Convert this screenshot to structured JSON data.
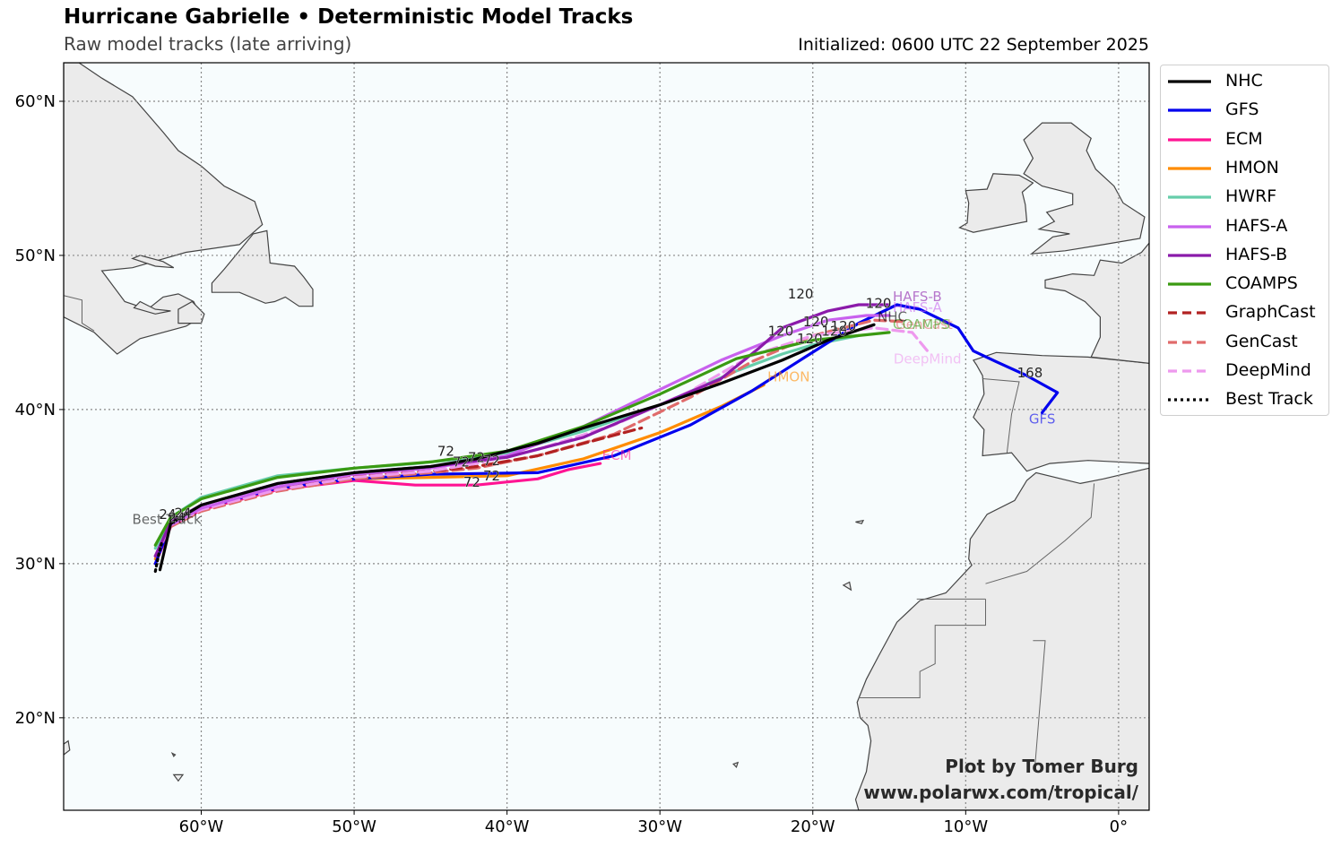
{
  "header": {
    "title": "Hurricane Gabrielle • Deterministic Model Tracks",
    "subtitle": "Raw model tracks (late arriving)",
    "initialized": "Initialized: 0600 UTC 22 September 2025"
  },
  "credits": {
    "line1": "Plot by Tomer Burg",
    "line2": "www.polarwx.com/tropical/"
  },
  "map": {
    "lon_range": [
      -69,
      2
    ],
    "lat_range": [
      14,
      62.5
    ],
    "ocean_color": "#f7fcfd",
    "land_color": "#ebebeb",
    "coast_color": "#444444",
    "lon_ticks": [
      {
        "lon": -60,
        "label": "60°W"
      },
      {
        "lon": -50,
        "label": "50°W"
      },
      {
        "lon": -40,
        "label": "40°W"
      },
      {
        "lon": -30,
        "label": "30°W"
      },
      {
        "lon": -20,
        "label": "20°W"
      },
      {
        "lon": -10,
        "label": "10°W"
      },
      {
        "lon": 0,
        "label": "0°"
      }
    ],
    "lat_ticks": [
      {
        "lat": 60,
        "label": "60°N"
      },
      {
        "lat": 50,
        "label": "50°N"
      },
      {
        "lat": 40,
        "label": "40°N"
      },
      {
        "lat": 30,
        "label": "30°N"
      },
      {
        "lat": 20,
        "label": "20°N"
      }
    ]
  },
  "legend": [
    {
      "name": "NHC",
      "color": "#000000",
      "style": "solid"
    },
    {
      "name": "GFS",
      "color": "#0000ee",
      "style": "solid"
    },
    {
      "name": "ECM",
      "color": "#ff1493",
      "style": "solid"
    },
    {
      "name": "HMON",
      "color": "#ff8c00",
      "style": "solid"
    },
    {
      "name": "HWRF",
      "color": "#66cdaa",
      "style": "solid"
    },
    {
      "name": "HAFS-A",
      "color": "#c861ee",
      "style": "solid"
    },
    {
      "name": "HAFS-B",
      "color": "#8b1aaa",
      "style": "solid"
    },
    {
      "name": "COAMPS",
      "color": "#3a9a12",
      "style": "solid"
    },
    {
      "name": "GraphCast",
      "color": "#b22222",
      "style": "dashed"
    },
    {
      "name": "GenCast",
      "color": "#e06b6b",
      "style": "dashed"
    },
    {
      "name": "DeepMind",
      "color": "#ee99ee",
      "style": "dashed"
    },
    {
      "name": "Best Track",
      "color": "#000000",
      "style": "dotted"
    }
  ],
  "tracks": [
    {
      "name": "HWRF",
      "color": "#66cdaa",
      "style": "solid",
      "end_label": "",
      "points": [
        [
          -63,
          31
        ],
        [
          -62,
          33
        ],
        [
          -60,
          34.3
        ],
        [
          -55,
          35.7
        ],
        [
          -50,
          36.2
        ],
        [
          -46,
          36.5
        ],
        [
          -43,
          36.8
        ],
        [
          -40,
          37.2
        ],
        [
          -35,
          38.6
        ],
        [
          -30,
          40.3
        ],
        [
          -25,
          42.5
        ],
        [
          -22,
          43.6
        ],
        [
          -20,
          44.2
        ],
        [
          -17,
          44.8
        ]
      ]
    },
    {
      "name": "HMON",
      "color": "#ff8c00",
      "style": "solid",
      "end_label": "HMON",
      "points": [
        [
          -63,
          30.3
        ],
        [
          -62,
          32.5
        ],
        [
          -60,
          33.5
        ],
        [
          -55,
          34.8
        ],
        [
          -50,
          35.5
        ],
        [
          -45,
          35.6
        ],
        [
          -40,
          35.7
        ],
        [
          -35,
          36.8
        ],
        [
          -30,
          38.5
        ],
        [
          -26,
          40.2
        ],
        [
          -23.2,
          41.6
        ]
      ]
    },
    {
      "name": "ECM",
      "color": "#ff1493",
      "style": "solid",
      "end_label": "ECM",
      "points": [
        [
          -63,
          30
        ],
        [
          -62,
          32.4
        ],
        [
          -60,
          33.5
        ],
        [
          -55,
          34.8
        ],
        [
          -50,
          35.4
        ],
        [
          -46,
          35.1
        ],
        [
          -42,
          35.1
        ],
        [
          -38,
          35.5
        ],
        [
          -36,
          36.1
        ],
        [
          -33.9,
          36.5
        ]
      ]
    },
    {
      "name": "GFS",
      "color": "#0000ee",
      "style": "solid",
      "end_label": "GFS",
      "points": [
        [
          -63,
          30
        ],
        [
          -62,
          32.6
        ],
        [
          -60,
          33.6
        ],
        [
          -55,
          34.9
        ],
        [
          -50,
          35.5
        ],
        [
          -45,
          35.8
        ],
        [
          -38,
          35.9
        ],
        [
          -33,
          37
        ],
        [
          -28,
          39
        ],
        [
          -24,
          41.2
        ],
        [
          -20.5,
          43.4
        ],
        [
          -17,
          45.6
        ],
        [
          -14.5,
          46.8
        ],
        [
          -13,
          46.5
        ],
        [
          -10.5,
          45.3
        ],
        [
          -9.5,
          43.8
        ],
        [
          -8,
          43.1
        ],
        [
          -6,
          42.2
        ],
        [
          -4,
          41.1
        ],
        [
          -5,
          39.8
        ]
      ]
    },
    {
      "name": "GenCast",
      "color": "#e06b6b",
      "style": "dashed",
      "end_label": "GenCast",
      "points": [
        [
          -63,
          30.5
        ],
        [
          -62,
          32.4
        ],
        [
          -60,
          33.4
        ],
        [
          -55,
          34.7
        ],
        [
          -50,
          35.5
        ],
        [
          -45,
          35.9
        ],
        [
          -42,
          36.2
        ],
        [
          -38,
          37
        ],
        [
          -33,
          38.4
        ],
        [
          -28,
          40.8
        ],
        [
          -24,
          43.1
        ],
        [
          -20,
          44.8
        ],
        [
          -16,
          45.8
        ],
        [
          -14,
          45.7
        ]
      ]
    },
    {
      "name": "GraphCast",
      "color": "#b22222",
      "style": "dashed",
      "end_label": "",
      "points": [
        [
          -63,
          30.5
        ],
        [
          -62,
          32.5
        ],
        [
          -60,
          33.6
        ],
        [
          -55,
          34.9
        ],
        [
          -50,
          35.7
        ],
        [
          -45,
          36
        ],
        [
          -42,
          36.3
        ],
        [
          -38,
          37
        ],
        [
          -35,
          37.8
        ],
        [
          -31.2,
          38.8
        ]
      ]
    },
    {
      "name": "DeepMind",
      "color": "#ee99ee",
      "style": "dashed",
      "end_label": "DeepMind",
      "points": [
        [
          -63,
          30.5
        ],
        [
          -62,
          32.5
        ],
        [
          -60,
          33.5
        ],
        [
          -55,
          34.8
        ],
        [
          -50,
          35.6
        ],
        [
          -45,
          36
        ],
        [
          -42,
          36.5
        ],
        [
          -38,
          37.4
        ],
        [
          -33,
          39
        ],
        [
          -28,
          41.2
        ],
        [
          -24,
          43.5
        ],
        [
          -20,
          44.8
        ],
        [
          -16,
          45.3
        ],
        [
          -13.5,
          45
        ],
        [
          -12.5,
          43.8
        ]
      ]
    },
    {
      "name": "HAFS-A",
      "color": "#c861ee",
      "style": "solid",
      "end_label": "HAFS-A",
      "points": [
        [
          -63,
          30.5
        ],
        [
          -62,
          32.5
        ],
        [
          -60,
          33.6
        ],
        [
          -55,
          35
        ],
        [
          -50,
          35.8
        ],
        [
          -45,
          36.2
        ],
        [
          -40,
          37
        ],
        [
          -35,
          38.9
        ],
        [
          -30,
          41.3
        ],
        [
          -26,
          43.2
        ],
        [
          -22,
          44.8
        ],
        [
          -19,
          45.8
        ],
        [
          -16.5,
          46.1
        ],
        [
          -15,
          46.1
        ]
      ]
    },
    {
      "name": "HAFS-B",
      "color": "#8b1aaa",
      "style": "solid",
      "end_label": "HAFS-B",
      "points": [
        [
          -63,
          30.5
        ],
        [
          -62,
          32.7
        ],
        [
          -60,
          33.8
        ],
        [
          -55,
          35.2
        ],
        [
          -50,
          35.9
        ],
        [
          -45,
          36.3
        ],
        [
          -40,
          36.9
        ],
        [
          -35,
          38.2
        ],
        [
          -30,
          40.3
        ],
        [
          -26,
          42
        ],
        [
          -23.5,
          44
        ],
        [
          -22,
          45.3
        ],
        [
          -19,
          46.4
        ],
        [
          -17,
          46.8
        ],
        [
          -15,
          46.8
        ]
      ]
    },
    {
      "name": "COAMPS",
      "color": "#3a9a12",
      "style": "solid",
      "end_label": "COAMPS",
      "points": [
        [
          -63,
          31.2
        ],
        [
          -62,
          33
        ],
        [
          -60,
          34.2
        ],
        [
          -55,
          35.6
        ],
        [
          -50,
          36.2
        ],
        [
          -45,
          36.6
        ],
        [
          -40,
          37.3
        ],
        [
          -35,
          38.9
        ],
        [
          -30,
          41
        ],
        [
          -25,
          43.3
        ],
        [
          -20,
          44.5
        ],
        [
          -17,
          44.8
        ],
        [
          -15,
          45
        ]
      ]
    },
    {
      "name": "NHC",
      "color": "#000000",
      "style": "solid",
      "end_label": "NHC",
      "points": [
        [
          -62.7,
          29.6
        ],
        [
          -62,
          32.6
        ],
        [
          -60,
          33.8
        ],
        [
          -55,
          35.2
        ],
        [
          -50,
          35.9
        ],
        [
          -45,
          36.3
        ],
        [
          -42,
          36.8
        ],
        [
          -38,
          37.8
        ],
        [
          -35,
          38.8
        ],
        [
          -30,
          40.3
        ],
        [
          -26,
          41.7
        ],
        [
          -22,
          43.2
        ],
        [
          -19,
          44.5
        ],
        [
          -16,
          45.5
        ]
      ]
    },
    {
      "name": "Best Track",
      "color": "#000000",
      "style": "dotted",
      "end_label": "Best Track",
      "points": [
        [
          -63,
          29.5
        ],
        [
          -62.8,
          30.5
        ],
        [
          -62.6,
          31.3
        ]
      ]
    }
  ],
  "hour_labels": [
    {
      "text": "24",
      "lon": -62.2,
      "lat": 32.9
    },
    {
      "text": "24",
      "lon": -61.6,
      "lat": 32.7
    },
    {
      "text": "24",
      "lon": -61.2,
      "lat": 33.0
    },
    {
      "text": "72",
      "lon": -44,
      "lat": 37.0
    },
    {
      "text": "72",
      "lon": -43,
      "lat": 36.3
    },
    {
      "text": "72",
      "lon": -42,
      "lat": 36.6
    },
    {
      "text": "72",
      "lon": -41,
      "lat": 36.4
    },
    {
      "text": "72",
      "lon": -42.3,
      "lat": 35.0
    },
    {
      "text": "72",
      "lon": -41,
      "lat": 35.4
    },
    {
      "text": "120",
      "lon": -19.8,
      "lat": 45.4
    },
    {
      "text": "120",
      "lon": -18.6,
      "lat": 44.8
    },
    {
      "text": "120",
      "lon": -20.8,
      "lat": 47.2
    },
    {
      "text": "120",
      "lon": -22.1,
      "lat": 44.8
    },
    {
      "text": "120",
      "lon": -18,
      "lat": 45.1
    },
    {
      "text": "120",
      "lon": -15.7,
      "lat": 46.6
    },
    {
      "text": "120",
      "lon": -20.2,
      "lat": 44.3
    },
    {
      "text": "168",
      "lon": -5.8,
      "lat": 42.1
    }
  ]
}
